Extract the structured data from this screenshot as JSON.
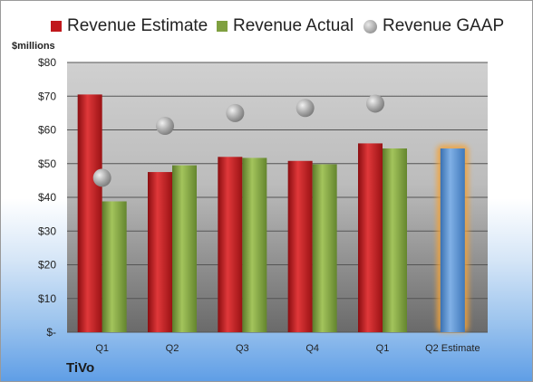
{
  "legend": {
    "estimate": "Revenue Estimate",
    "actual": "Revenue Actual",
    "gaap": "Revenue GAAP"
  },
  "unit_label": "$millions",
  "company": "TiVo",
  "colors": {
    "estimate": "#c0181c",
    "actual": "#7fa040",
    "gaap": "#9a9a9a",
    "forecast": "#4f8fd0",
    "forecast_glow": "#f2a33a"
  },
  "chart_data": {
    "type": "bar",
    "categories": [
      "Q1",
      "Q2",
      "Q3",
      "Q4",
      "Q1",
      "Q2 Estimate"
    ],
    "ylim": [
      0,
      80
    ],
    "ytick_values": [
      0,
      10,
      20,
      30,
      40,
      50,
      60,
      70,
      80
    ],
    "ytick_labels": [
      "$-",
      "$10",
      "$20",
      "$30",
      "$40",
      "$50",
      "$60",
      "$70",
      "$80"
    ],
    "grid": true,
    "legend_position": "top",
    "series": [
      {
        "name": "Revenue Estimate",
        "values": [
          70.5,
          47.5,
          52,
          50.8,
          56,
          54.5
        ]
      },
      {
        "name": "Revenue Actual",
        "values": [
          38.8,
          49.5,
          51.7,
          49.8,
          54.5,
          null
        ]
      },
      {
        "name": "Revenue GAAP",
        "values": [
          45.8,
          61.2,
          65,
          66.5,
          67.8,
          null
        ]
      }
    ]
  }
}
